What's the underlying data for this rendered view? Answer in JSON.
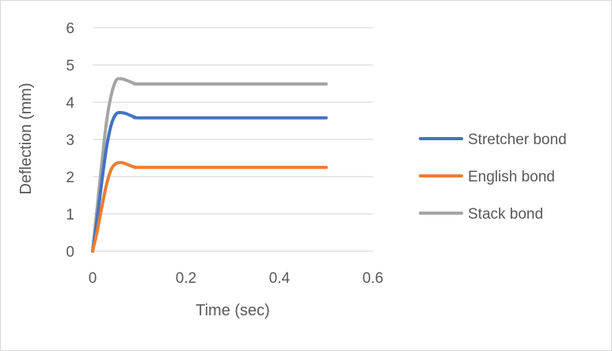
{
  "chart_data": {
    "type": "line",
    "title": "",
    "xlabel": "Time (sec)",
    "ylabel": "Deflection (mm)",
    "xlim": [
      0,
      0.6
    ],
    "ylim": [
      0,
      6
    ],
    "x_ticks": [
      0,
      0.2,
      0.4,
      0.6
    ],
    "x_tick_labels": [
      "0",
      "0.2",
      "0.4",
      "0.6"
    ],
    "y_ticks": [
      0,
      1,
      2,
      3,
      4,
      5,
      6
    ],
    "y_tick_labels": [
      "0",
      "1",
      "2",
      "3",
      "4",
      "5",
      "6"
    ],
    "grid": "horizontal",
    "legend_position": "right",
    "series": [
      {
        "name": "Stretcher bond",
        "color": "#4472C4",
        "x": [
          0,
          0.01,
          0.02,
          0.03,
          0.04,
          0.05,
          0.06,
          0.07,
          0.08,
          0.09,
          0.1,
          0.2,
          0.3,
          0.4,
          0.5
        ],
        "values": [
          0,
          0.9,
          1.9,
          2.8,
          3.4,
          3.68,
          3.72,
          3.7,
          3.65,
          3.6,
          3.58,
          3.58,
          3.58,
          3.58,
          3.58
        ]
      },
      {
        "name": "English bond",
        "color": "#ED7D31",
        "x": [
          0,
          0.01,
          0.02,
          0.03,
          0.04,
          0.05,
          0.06,
          0.07,
          0.08,
          0.09,
          0.1,
          0.2,
          0.3,
          0.4,
          0.5
        ],
        "values": [
          0,
          0.55,
          1.2,
          1.8,
          2.2,
          2.35,
          2.38,
          2.35,
          2.3,
          2.26,
          2.25,
          2.25,
          2.25,
          2.25,
          2.25
        ]
      },
      {
        "name": "Stack bond",
        "color": "#A5A5A5",
        "x": [
          0,
          0.01,
          0.02,
          0.03,
          0.04,
          0.05,
          0.06,
          0.07,
          0.08,
          0.09,
          0.1,
          0.2,
          0.3,
          0.4,
          0.5
        ],
        "values": [
          0,
          1.2,
          2.4,
          3.5,
          4.2,
          4.58,
          4.63,
          4.6,
          4.55,
          4.5,
          4.49,
          4.49,
          4.49,
          4.49,
          4.49
        ]
      }
    ]
  }
}
